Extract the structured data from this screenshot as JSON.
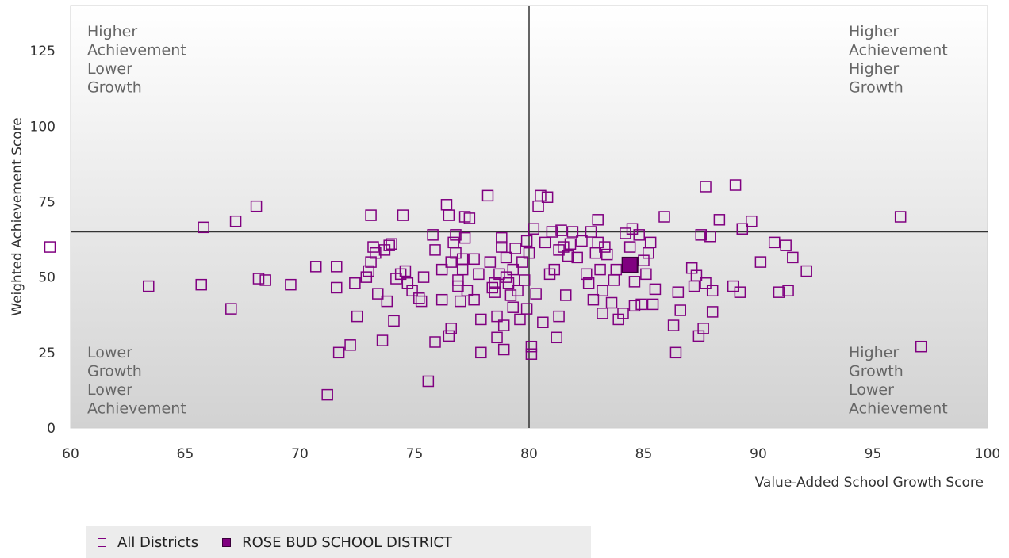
{
  "colors": {
    "marker": "#800080",
    "highlight_fill": "#800080",
    "highlight_stroke": "#3a003a",
    "plot_top": "#ffffff",
    "plot_bottom": "#d2d2d2",
    "divider": "#333333"
  },
  "quadrants": {
    "top_left": [
      "Higher",
      "Achievement",
      "Lower",
      "Growth"
    ],
    "top_right": [
      "Higher",
      "Achievement",
      "Higher",
      "Growth"
    ],
    "bottom_left": [
      "Lower",
      "Growth",
      "Lower",
      "Achievement"
    ],
    "bottom_right": [
      "Higher",
      "Growth",
      "Lower",
      "Achievement"
    ]
  },
  "legend": {
    "all_label": "All Districts",
    "highlight_label": "ROSE BUD SCHOOL DISTRICT"
  },
  "chart_data": {
    "type": "scatter",
    "xlabel": "Value-Added School Growth Score",
    "ylabel": "Weighted Achievement Score",
    "xlim": [
      60,
      100
    ],
    "ylim": [
      0,
      140
    ],
    "x_ticks": [
      60,
      65,
      70,
      75,
      80,
      85,
      90,
      95,
      100
    ],
    "y_ticks": [
      0,
      25,
      50,
      75,
      100,
      125
    ],
    "divider_x": 80,
    "divider_y": 65,
    "grid": false,
    "legend_position": "bottom-left",
    "series": [
      {
        "name": "All Districts",
        "marker": "hollow-square",
        "points": [
          [
            59.1,
            60
          ],
          [
            63.4,
            47
          ],
          [
            65.7,
            47.5
          ],
          [
            65.8,
            66.5
          ],
          [
            67,
            39.5
          ],
          [
            67.2,
            68.5
          ],
          [
            68.1,
            73.5
          ],
          [
            68.2,
            49.5
          ],
          [
            68.5,
            49
          ],
          [
            69.6,
            47.5
          ],
          [
            70.7,
            53.5
          ],
          [
            71.2,
            11
          ],
          [
            71.6,
            53.5
          ],
          [
            71.6,
            46.5
          ],
          [
            71.7,
            25
          ],
          [
            72.2,
            27.5
          ],
          [
            72.4,
            48
          ],
          [
            72.5,
            37
          ],
          [
            72.9,
            50
          ],
          [
            73,
            52
          ],
          [
            73.1,
            55
          ],
          [
            73.3,
            58
          ],
          [
            73.2,
            60
          ],
          [
            73.4,
            44.5
          ],
          [
            73.7,
            59
          ],
          [
            73.6,
            29
          ],
          [
            73.8,
            42
          ],
          [
            73.9,
            60.5
          ],
          [
            74,
            61
          ],
          [
            74.1,
            35.5
          ],
          [
            74.2,
            49.5
          ],
          [
            74.4,
            51
          ],
          [
            74.6,
            52
          ],
          [
            74.5,
            70.5
          ],
          [
            73.1,
            70.5
          ],
          [
            74.7,
            48
          ],
          [
            74.9,
            45.5
          ],
          [
            75.2,
            43
          ],
          [
            75.3,
            42
          ],
          [
            75.4,
            50
          ],
          [
            75.6,
            15.5
          ],
          [
            75.8,
            64
          ],
          [
            75.9,
            59
          ],
          [
            75.9,
            28.5
          ],
          [
            76.2,
            52.5
          ],
          [
            76.2,
            42.5
          ],
          [
            76.4,
            74
          ],
          [
            76.5,
            70.5
          ],
          [
            76.6,
            55
          ],
          [
            76.6,
            33
          ],
          [
            76.5,
            30.5
          ],
          [
            76.8,
            64
          ],
          [
            76.7,
            61.5
          ],
          [
            76.8,
            58
          ],
          [
            76.9,
            49
          ],
          [
            76.9,
            47
          ],
          [
            77,
            42
          ],
          [
            77.1,
            56
          ],
          [
            77.1,
            52.5
          ],
          [
            77.2,
            63
          ],
          [
            77.2,
            70
          ],
          [
            77.3,
            45.5
          ],
          [
            77.4,
            69.5
          ],
          [
            77.6,
            42.5
          ],
          [
            77.6,
            56
          ],
          [
            77.8,
            51
          ],
          [
            77.9,
            25
          ],
          [
            77.9,
            36
          ],
          [
            78.2,
            77
          ],
          [
            78.3,
            55
          ],
          [
            78.4,
            46.5
          ],
          [
            78.5,
            45
          ],
          [
            78.5,
            48
          ],
          [
            78.6,
            37
          ],
          [
            78.7,
            51
          ],
          [
            78.6,
            30
          ],
          [
            78.8,
            63
          ],
          [
            78.8,
            60
          ],
          [
            78.9,
            34
          ],
          [
            78.9,
            26
          ],
          [
            79,
            56.5
          ],
          [
            79,
            50
          ],
          [
            79.1,
            48
          ],
          [
            79.2,
            44
          ],
          [
            79.3,
            52.5
          ],
          [
            79.3,
            40
          ],
          [
            79.4,
            59.5
          ],
          [
            79.5,
            45.5
          ],
          [
            79.6,
            36
          ],
          [
            79.7,
            55
          ],
          [
            79.8,
            49
          ],
          [
            79.9,
            62
          ],
          [
            79.9,
            39.5
          ],
          [
            80,
            58
          ],
          [
            80.1,
            27
          ],
          [
            80.1,
            24.5
          ],
          [
            80.2,
            66
          ],
          [
            80.3,
            44.5
          ],
          [
            80.4,
            73.5
          ],
          [
            80.5,
            77
          ],
          [
            80.6,
            35
          ],
          [
            80.7,
            61.5
          ],
          [
            80.8,
            76.5
          ],
          [
            80.9,
            51
          ],
          [
            81,
            65
          ],
          [
            81.1,
            52.5
          ],
          [
            81.2,
            30
          ],
          [
            81.3,
            59
          ],
          [
            81.3,
            37
          ],
          [
            81.4,
            65.5
          ],
          [
            81.5,
            60
          ],
          [
            81.6,
            44
          ],
          [
            81.7,
            57
          ],
          [
            81.8,
            61
          ],
          [
            81.9,
            65
          ],
          [
            82.1,
            56.5
          ],
          [
            82.3,
            62
          ],
          [
            82.5,
            51
          ],
          [
            82.6,
            48
          ],
          [
            82.7,
            65
          ],
          [
            82.8,
            42.5
          ],
          [
            82.9,
            58
          ],
          [
            83,
            61.5
          ],
          [
            83,
            69
          ],
          [
            83.1,
            52.5
          ],
          [
            83.2,
            45.5
          ],
          [
            83.2,
            38
          ],
          [
            83.3,
            60
          ],
          [
            83.4,
            57.5
          ],
          [
            83.6,
            41.5
          ],
          [
            83.7,
            49
          ],
          [
            83.8,
            52.5
          ],
          [
            83.9,
            36
          ],
          [
            84.1,
            38
          ],
          [
            84.2,
            64.5
          ],
          [
            84.4,
            60
          ],
          [
            84.5,
            66
          ],
          [
            84.6,
            48.5
          ],
          [
            84.6,
            40.5
          ],
          [
            84.8,
            64
          ],
          [
            84.9,
            41
          ],
          [
            85,
            55.5
          ],
          [
            85.1,
            51
          ],
          [
            85.2,
            58
          ],
          [
            85.3,
            61.5
          ],
          [
            85.4,
            41
          ],
          [
            85.5,
            46
          ],
          [
            85.9,
            70
          ],
          [
            86.3,
            34
          ],
          [
            86.4,
            25
          ],
          [
            86.5,
            45
          ],
          [
            86.6,
            39
          ],
          [
            87.1,
            53
          ],
          [
            87.2,
            47
          ],
          [
            87.3,
            50.5
          ],
          [
            87.4,
            30.5
          ],
          [
            87.5,
            64
          ],
          [
            87.6,
            33
          ],
          [
            87.7,
            48
          ],
          [
            87.7,
            80
          ],
          [
            87.9,
            63.5
          ],
          [
            88,
            45.5
          ],
          [
            88,
            38.5
          ],
          [
            88.3,
            69
          ],
          [
            88.9,
            47
          ],
          [
            89,
            80.5
          ],
          [
            89.2,
            45
          ],
          [
            89.3,
            66
          ],
          [
            89.7,
            68.5
          ],
          [
            90.1,
            55
          ],
          [
            90.7,
            61.5
          ],
          [
            90.9,
            45
          ],
          [
            91.2,
            60.5
          ],
          [
            91.3,
            45.5
          ],
          [
            91.5,
            56.5
          ],
          [
            92.1,
            52
          ],
          [
            96.2,
            70
          ],
          [
            97.1,
            27
          ]
        ]
      },
      {
        "name": "ROSE BUD SCHOOL DISTRICT",
        "marker": "filled-square",
        "points": [
          [
            84.4,
            54
          ]
        ]
      }
    ]
  }
}
